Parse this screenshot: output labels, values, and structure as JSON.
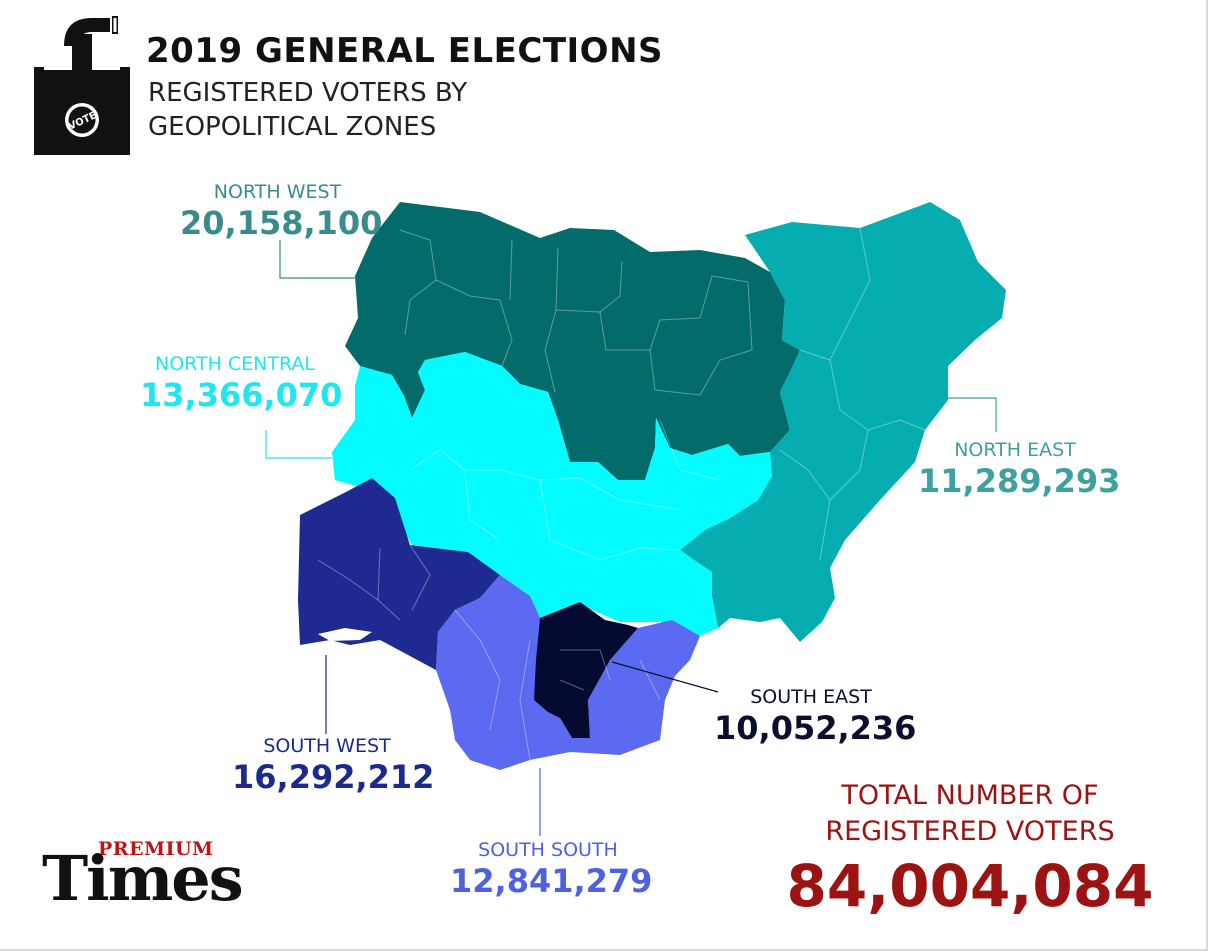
{
  "title": "2019 GENERAL ELECTIONS",
  "subtitle_lines": [
    "REGISTERED VOTERS BY",
    "GEOPOLITICAL ZONES"
  ],
  "ballot_icon": {
    "icon": "ballot-box-icon",
    "badge_text": "VOTE"
  },
  "zones": {
    "north_west": {
      "name": "NORTH WEST",
      "value": "20,158,100",
      "voters": 20158100,
      "color": "#036b69"
    },
    "north_central": {
      "name": "NORTH CENTRAL",
      "value": "13,366,070",
      "voters": 13366070,
      "color": "#04fbff"
    },
    "north_east": {
      "name": "NORTH EAST",
      "value": "11,289,293",
      "voters": 11289293,
      "color": "#05adb1"
    },
    "south_east": {
      "name": "SOUTH EAST",
      "value": "10,052,236",
      "voters": 10052236,
      "color": "#050a33"
    },
    "south_west": {
      "name": "SOUTH WEST",
      "value": "16,292,212",
      "voters": 16292212,
      "color": "#1e2a92"
    },
    "south_south": {
      "name": "SOUTH SOUTH",
      "value": "12,841,279",
      "voters": 12841279,
      "color": "#5b6af0"
    }
  },
  "total": {
    "lines": [
      "TOTAL NUMBER OF",
      "REGISTERED VOTERS"
    ],
    "value": "84,004,084",
    "color": "#9b1313"
  },
  "logo": {
    "premium": "PREMIUM",
    "times": "Times"
  }
}
